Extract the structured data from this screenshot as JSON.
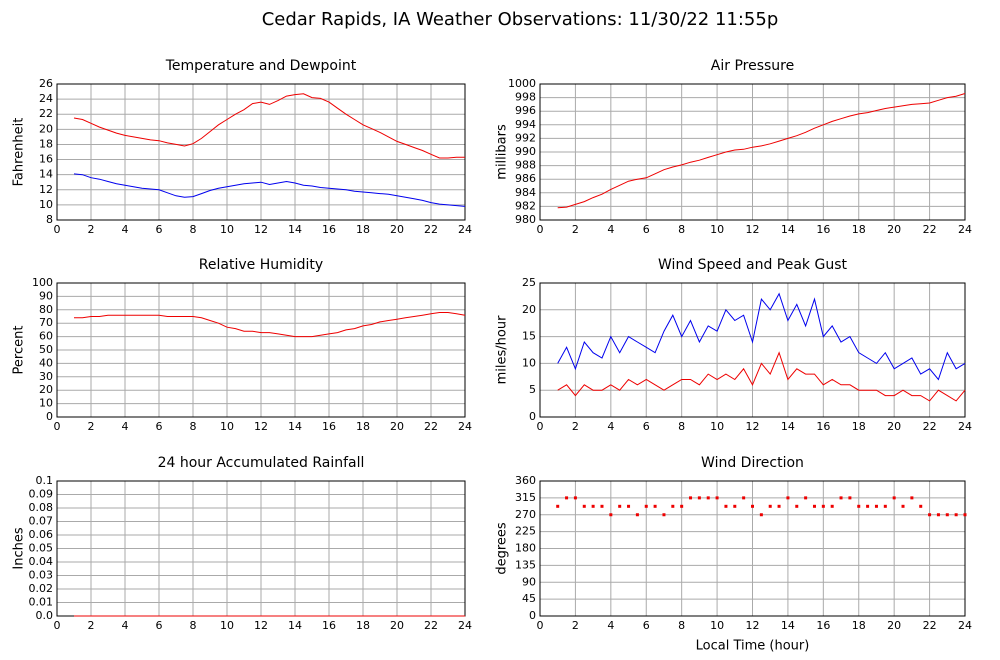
{
  "title": "Cedar Rapids, IA Weather Observations: 11/30/22 11:55p",
  "chart_data": [
    {
      "type": "line",
      "title": "Temperature and Dewpoint",
      "ylabel": "Fahrenheit",
      "x": [
        1,
        1.5,
        2,
        2.5,
        3,
        3.5,
        4,
        4.5,
        5,
        5.5,
        6,
        6.5,
        7,
        7.5,
        8,
        8.5,
        9,
        9.5,
        10,
        10.5,
        11,
        11.5,
        12,
        12.5,
        13,
        13.5,
        14,
        14.5,
        15,
        15.5,
        16,
        16.5,
        17,
        17.5,
        18,
        18.5,
        19,
        19.5,
        20,
        20.5,
        21,
        21.5,
        22,
        22.5,
        23,
        23.5,
        24
      ],
      "series": [
        {
          "color": "#ee0000",
          "values": [
            21.5,
            21.3,
            20.8,
            20.3,
            19.9,
            19.5,
            19.2,
            19.0,
            18.8,
            18.6,
            18.5,
            18.2,
            18.0,
            17.8,
            18.1,
            18.8,
            19.7,
            20.6,
            21.3,
            22.0,
            22.6,
            23.4,
            23.6,
            23.3,
            23.8,
            24.4,
            24.6,
            24.7,
            24.2,
            24.1,
            23.6,
            22.8,
            22.0,
            21.3,
            20.6,
            20.1,
            19.6,
            19.0,
            18.4,
            18.0,
            17.6,
            17.2,
            16.7,
            16.2,
            16.2,
            16.3,
            16.3
          ]
        },
        {
          "color": "#0000ee",
          "values": [
            14.1,
            14.0,
            13.6,
            13.4,
            13.1,
            12.8,
            12.6,
            12.4,
            12.2,
            12.1,
            12.0,
            11.6,
            11.2,
            11.0,
            11.1,
            11.5,
            11.9,
            12.2,
            12.4,
            12.6,
            12.8,
            12.9,
            13.0,
            12.7,
            12.9,
            13.1,
            12.9,
            12.6,
            12.5,
            12.3,
            12.2,
            12.1,
            12.0,
            11.8,
            11.7,
            11.6,
            11.5,
            11.4,
            11.2,
            11.0,
            10.8,
            10.6,
            10.3,
            10.1,
            10.0,
            9.9,
            9.8
          ]
        }
      ],
      "xlim": [
        0,
        24
      ],
      "xticks": [
        0,
        2,
        4,
        6,
        8,
        10,
        12,
        14,
        16,
        18,
        20,
        22,
        24
      ],
      "ylim": [
        8,
        26
      ],
      "yticks": [
        8,
        10,
        12,
        14,
        16,
        18,
        20,
        22,
        24,
        26
      ],
      "grid": true
    },
    {
      "type": "line",
      "title": "Air Pressure",
      "ylabel": "millibars",
      "x": [
        1,
        1.5,
        2,
        2.5,
        3,
        3.5,
        4,
        4.5,
        5,
        5.5,
        6,
        6.5,
        7,
        7.5,
        8,
        8.5,
        9,
        9.5,
        10,
        10.5,
        11,
        11.5,
        12,
        12.5,
        13,
        13.5,
        14,
        14.5,
        15,
        15.5,
        16,
        16.5,
        17,
        17.5,
        18,
        18.5,
        19,
        19.5,
        20,
        20.5,
        21,
        21.5,
        22,
        22.5,
        23,
        23.5,
        24
      ],
      "series": [
        {
          "color": "#ee0000",
          "values": [
            981.8,
            981.9,
            982.3,
            982.7,
            983.3,
            983.8,
            984.5,
            985.1,
            985.7,
            986.0,
            986.2,
            986.8,
            987.4,
            987.8,
            988.1,
            988.5,
            988.8,
            989.2,
            989.6,
            990.0,
            990.3,
            990.4,
            990.7,
            990.9,
            991.2,
            991.6,
            992.0,
            992.4,
            992.9,
            993.5,
            994.0,
            994.5,
            994.9,
            995.3,
            995.6,
            995.8,
            996.1,
            996.4,
            996.6,
            996.8,
            997.0,
            997.1,
            997.2,
            997.6,
            998.0,
            998.2,
            998.6
          ]
        }
      ],
      "xlim": [
        0,
        24
      ],
      "xticks": [
        0,
        2,
        4,
        6,
        8,
        10,
        12,
        14,
        16,
        18,
        20,
        22,
        24
      ],
      "ylim": [
        980,
        1000
      ],
      "yticks": [
        980,
        982,
        984,
        986,
        988,
        990,
        992,
        994,
        996,
        998,
        1000
      ],
      "grid": true
    },
    {
      "type": "line",
      "title": "Relative Humidity",
      "ylabel": "Percent",
      "x": [
        1,
        1.5,
        2,
        2.5,
        3,
        3.5,
        4,
        4.5,
        5,
        5.5,
        6,
        6.5,
        7,
        7.5,
        8,
        8.5,
        9,
        9.5,
        10,
        10.5,
        11,
        11.5,
        12,
        12.5,
        13,
        13.5,
        14,
        14.5,
        15,
        15.5,
        16,
        16.5,
        17,
        17.5,
        18,
        18.5,
        19,
        19.5,
        20,
        20.5,
        21,
        21.5,
        22,
        22.5,
        23,
        23.5,
        24
      ],
      "series": [
        {
          "color": "#ee0000",
          "values": [
            74,
            74,
            75,
            75,
            76,
            76,
            76,
            76,
            76,
            76,
            76,
            75,
            75,
            75,
            75,
            74,
            72,
            70,
            67,
            66,
            64,
            64,
            63,
            63,
            62,
            61,
            60,
            60,
            60,
            61,
            62,
            63,
            65,
            66,
            68,
            69,
            71,
            72,
            73,
            74,
            75,
            76,
            77,
            78,
            78,
            77,
            76
          ]
        }
      ],
      "xlim": [
        0,
        24
      ],
      "xticks": [
        0,
        2,
        4,
        6,
        8,
        10,
        12,
        14,
        16,
        18,
        20,
        22,
        24
      ],
      "ylim": [
        0,
        100
      ],
      "yticks": [
        0,
        10,
        20,
        30,
        40,
        50,
        60,
        70,
        80,
        90,
        100
      ],
      "grid": true
    },
    {
      "type": "line",
      "title": "Wind Speed and Peak Gust",
      "ylabel": "miles/hour",
      "x": [
        1,
        1.5,
        2,
        2.5,
        3,
        3.5,
        4,
        4.5,
        5,
        5.5,
        6,
        6.5,
        7,
        7.5,
        8,
        8.5,
        9,
        9.5,
        10,
        10.5,
        11,
        11.5,
        12,
        12.5,
        13,
        13.5,
        14,
        14.5,
        15,
        15.5,
        16,
        16.5,
        17,
        17.5,
        18,
        18.5,
        19,
        19.5,
        20,
        20.5,
        21,
        21.5,
        22,
        22.5,
        23,
        23.5,
        24
      ],
      "series": [
        {
          "color": "#ee0000",
          "values": [
            5,
            6,
            4,
            6,
            5,
            5,
            6,
            5,
            7,
            6,
            7,
            6,
            5,
            6,
            7,
            7,
            6,
            8,
            7,
            8,
            7,
            9,
            6,
            10,
            8,
            12,
            7,
            9,
            8,
            8,
            6,
            7,
            6,
            6,
            5,
            5,
            5,
            4,
            4,
            5,
            4,
            4,
            3,
            5,
            4,
            3,
            5
          ]
        },
        {
          "color": "#0000ee",
          "values": [
            10,
            13,
            9,
            14,
            12,
            11,
            15,
            12,
            15,
            14,
            13,
            12,
            16,
            19,
            15,
            18,
            14,
            17,
            16,
            20,
            18,
            19,
            14,
            22,
            20,
            23,
            18,
            21,
            17,
            22,
            15,
            17,
            14,
            15,
            12,
            11,
            10,
            12,
            9,
            10,
            11,
            8,
            9,
            7,
            12,
            9,
            10
          ]
        }
      ],
      "xlim": [
        0,
        24
      ],
      "xticks": [
        0,
        2,
        4,
        6,
        8,
        10,
        12,
        14,
        16,
        18,
        20,
        22,
        24
      ],
      "ylim": [
        0,
        25
      ],
      "yticks": [
        0,
        5,
        10,
        15,
        20,
        25
      ],
      "grid": true
    },
    {
      "type": "line",
      "title": "24 hour Accumulated Rainfall",
      "ylabel": "Inches",
      "x": [
        1,
        1.5,
        2,
        2.5,
        3,
        3.5,
        4,
        4.5,
        5,
        5.5,
        6,
        6.5,
        7,
        7.5,
        8,
        8.5,
        9,
        9.5,
        10,
        10.5,
        11,
        11.5,
        12,
        12.5,
        13,
        13.5,
        14,
        14.5,
        15,
        15.5,
        16,
        16.5,
        17,
        17.5,
        18,
        18.5,
        19,
        19.5,
        20,
        20.5,
        21,
        21.5,
        22,
        22.5,
        23,
        23.5,
        24
      ],
      "series": [
        {
          "color": "#ee0000",
          "values": [
            0,
            0,
            0,
            0,
            0,
            0,
            0,
            0,
            0,
            0,
            0,
            0,
            0,
            0,
            0,
            0,
            0,
            0,
            0,
            0,
            0,
            0,
            0,
            0,
            0,
            0,
            0,
            0,
            0,
            0,
            0,
            0,
            0,
            0,
            0,
            0,
            0,
            0,
            0,
            0,
            0,
            0,
            0,
            0,
            0,
            0,
            0
          ]
        }
      ],
      "xlim": [
        0,
        24
      ],
      "xticks": [
        0,
        2,
        4,
        6,
        8,
        10,
        12,
        14,
        16,
        18,
        20,
        22,
        24
      ],
      "ylim": [
        0,
        0.1
      ],
      "yticks": [
        {
          "value": 0,
          "label": "0.0"
        },
        0.01,
        0.02,
        0.03,
        0.04,
        0.05,
        0.06,
        0.07,
        0.08,
        0.09,
        0.1
      ],
      "grid": true
    },
    {
      "type": "scatter",
      "title": "Wind Direction",
      "ylabel": "degrees",
      "xlabel": "Local Time (hour)",
      "x": [
        1,
        1.5,
        2,
        2.5,
        3,
        3.5,
        4,
        4.5,
        5,
        5.5,
        6,
        6.5,
        7,
        7.5,
        8,
        8.5,
        9,
        9.5,
        10,
        10.5,
        11,
        11.5,
        12,
        12.5,
        13,
        13.5,
        14,
        14.5,
        15,
        15.5,
        16,
        16.5,
        17,
        17.5,
        18,
        18.5,
        19,
        19.5,
        20,
        20.5,
        21,
        21.5,
        22,
        22.5,
        23,
        23.5,
        24
      ],
      "series": [
        {
          "color": "#ee0000",
          "values": [
            292.5,
            315,
            315,
            292.5,
            292.5,
            292.5,
            270,
            292.5,
            292.5,
            270,
            292.5,
            292.5,
            270,
            292.5,
            292.5,
            315,
            315,
            315,
            315,
            292.5,
            292.5,
            315,
            292.5,
            270,
            292.5,
            292.5,
            315,
            292.5,
            315,
            292.5,
            292.5,
            292.5,
            315,
            315,
            292.5,
            292.5,
            292.5,
            292.5,
            315,
            292.5,
            315,
            292.5,
            270,
            270,
            270,
            270,
            270
          ]
        }
      ],
      "xlim": [
        0,
        24
      ],
      "xticks": [
        0,
        2,
        4,
        6,
        8,
        10,
        12,
        14,
        16,
        18,
        20,
        22,
        24
      ],
      "ylim": [
        0,
        360
      ],
      "yticks": [
        0,
        45,
        90,
        135,
        180,
        225,
        270,
        315,
        360
      ],
      "grid": true
    }
  ]
}
